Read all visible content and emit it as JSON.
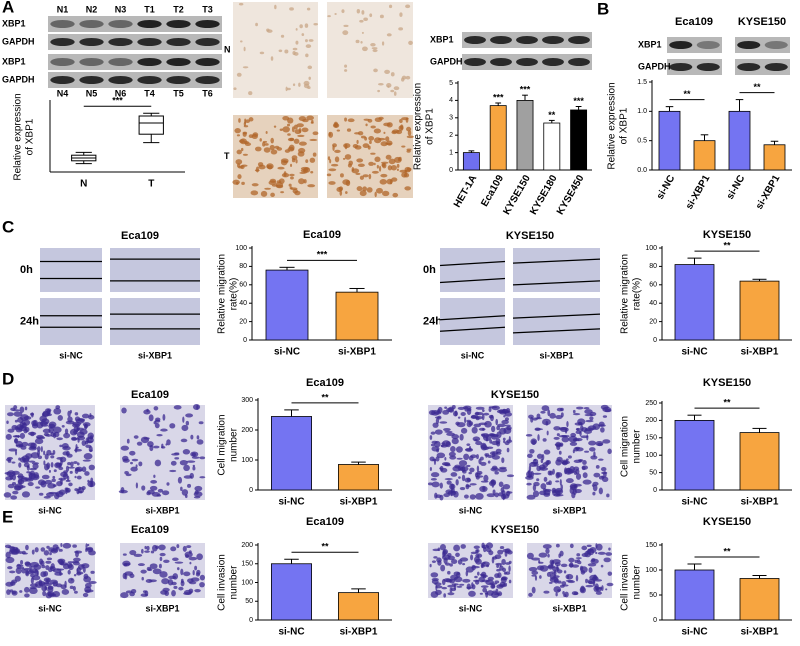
{
  "panel_labels": [
    "A",
    "B",
    "C",
    "D",
    "E"
  ],
  "blot_a": {
    "lanes_top": [
      "N1",
      "N2",
      "N3",
      "T1",
      "T2",
      "T3"
    ],
    "lanes_bottom": [
      "N4",
      "N5",
      "N6",
      "T4",
      "T5",
      "T6"
    ],
    "rows": [
      "XBP1",
      "GAPDH",
      "XBP1",
      "GAPDH"
    ]
  },
  "ihc_a": {
    "rows": [
      "N",
      "T"
    ]
  },
  "blot_a2": {
    "rows": [
      "XBP1",
      "GAPDH"
    ]
  },
  "blot_b": {
    "groups": [
      "Eca109",
      "KYSE150"
    ],
    "rows": [
      "XBP1",
      "GAPDH"
    ]
  },
  "scratch_images": [
    {
      "title": "Eca109",
      "rows": [
        "0h",
        "24h"
      ],
      "columns": [
        "si-NC",
        "si-XBP1"
      ]
    },
    {
      "title": "KYSE150",
      "rows": [
        "0h",
        "24h"
      ],
      "columns": [
        "si-NC",
        "si-XBP1"
      ]
    }
  ],
  "transwell_images": [
    {
      "title": "Eca109",
      "columns": [
        "si-NC",
        "si-XBP1"
      ]
    },
    {
      "title": "KYSE150",
      "columns": [
        "si-NC",
        "si-XBP1"
      ]
    },
    {
      "title": "Eca109",
      "columns": [
        "si-NC",
        "si-XBP1"
      ]
    },
    {
      "title": "KYSE150",
      "columns": [
        "si-NC",
        "si-XBP1"
      ]
    }
  ],
  "chart_data": [
    {
      "type": "box",
      "ylabel": [
        "Relative expression",
        "of XBP1"
      ],
      "categories": [
        "N",
        "T"
      ],
      "boxes": [
        {
          "min": 0.6,
          "q1": 0.8,
          "median": 1.0,
          "q3": 1.2,
          "max": 1.4
        },
        {
          "min": 2.1,
          "q1": 2.7,
          "median": 3.5,
          "q3": 4.0,
          "max": 4.2
        }
      ],
      "ylim": [
        0,
        5
      ],
      "pair_significance": [
        "***"
      ]
    },
    {
      "type": "bar",
      "ylabel": [
        "Relative expression",
        "of XBP1"
      ],
      "categories": [
        "HET-1A",
        "Eca109",
        "KYSE150",
        "KYSE180",
        "KYSE450"
      ],
      "values": [
        1,
        3.7,
        4,
        2.7,
        3.45
      ],
      "errors": [
        0.1,
        0.15,
        0.3,
        0.15,
        0.2
      ],
      "colors": [
        "#6f6ff0",
        "#f7a540",
        "#a0a0a0",
        "#ffffff",
        "#000000"
      ],
      "ylim": [
        0,
        5
      ],
      "yticks": [
        0,
        1,
        2,
        3,
        4,
        5
      ],
      "significance": [
        null,
        "***",
        "***",
        "**",
        "***"
      ]
    },
    {
      "type": "bar",
      "ylabel": [
        "Relative expression",
        "of XBP1"
      ],
      "categories": [
        "si-NC",
        "si-XBP1",
        "si-NC",
        "si-XBP1"
      ],
      "values": [
        1,
        0.5,
        1,
        0.43
      ],
      "errors": [
        0.08,
        0.1,
        0.2,
        0.06
      ],
      "colors": [
        "#7474f2",
        "#f7a540",
        "#7474f2",
        "#f7a540"
      ],
      "ylim": [
        0,
        1.5
      ],
      "yticks": [
        {
          "value": 0,
          "label": "0.0"
        },
        0.5,
        {
          "value": 1,
          "label": "1.0"
        },
        1.5
      ],
      "pair_significance": [
        "**",
        "**"
      ]
    },
    {
      "type": "bar",
      "title": "Eca109",
      "ylabel": [
        "Relative migration",
        "rate(%)"
      ],
      "categories": [
        "si-NC",
        "si-XBP1"
      ],
      "values": [
        76,
        52
      ],
      "errors": [
        3,
        4
      ],
      "colors": [
        "#7474f2",
        "#f7a540"
      ],
      "ylim": [
        0,
        100
      ],
      "yticks": [
        0,
        20,
        40,
        60,
        80,
        100
      ],
      "pair_significance": [
        "***"
      ]
    },
    {
      "type": "bar",
      "title": "KYSE150",
      "ylabel": [
        "Relative migration",
        "rate(%)"
      ],
      "categories": [
        "si-NC",
        "si-XBP1"
      ],
      "values": [
        82,
        64
      ],
      "errors": [
        7,
        2
      ],
      "colors": [
        "#7474f2",
        "#f7a540"
      ],
      "ylim": [
        0,
        100
      ],
      "yticks": [
        0,
        20,
        40,
        60,
        80,
        100
      ],
      "pair_significance": [
        "**"
      ]
    },
    {
      "type": "bar",
      "title": "Eca109",
      "ylabel": [
        "Cell migration",
        "number"
      ],
      "categories": [
        "si-NC",
        "si-XBP1"
      ],
      "values": [
        245,
        85
      ],
      "errors": [
        22,
        8
      ],
      "colors": [
        "#7474f2",
        "#f7a540"
      ],
      "ylim": [
        0,
        300
      ],
      "yticks": [
        0,
        100,
        200,
        300
      ],
      "pair_significance": [
        "**"
      ]
    },
    {
      "type": "bar",
      "title": "KYSE150",
      "ylabel": [
        "Cell migration",
        "number"
      ],
      "categories": [
        "si-NC",
        "si-XBP1"
      ],
      "values": [
        200,
        165
      ],
      "errors": [
        15,
        12
      ],
      "colors": [
        "#7474f2",
        "#f7a540"
      ],
      "ylim": [
        0,
        250
      ],
      "yticks": [
        0,
        50,
        100,
        150,
        200,
        250
      ],
      "pair_significance": [
        "**"
      ]
    },
    {
      "type": "bar",
      "title": "Eca109",
      "ylabel": [
        "Cell invasion",
        "number"
      ],
      "categories": [
        "si-NC",
        "si-XBP1"
      ],
      "values": [
        150,
        73
      ],
      "errors": [
        12,
        10
      ],
      "colors": [
        "#7474f2",
        "#f7a540"
      ],
      "ylim": [
        0,
        200
      ],
      "yticks": [
        0,
        50,
        100,
        150,
        200
      ],
      "pair_significance": [
        "**"
      ]
    },
    {
      "type": "bar",
      "title": "KYSE150",
      "ylabel": [
        "Cell invasion",
        "number"
      ],
      "categories": [
        "si-NC",
        "si-XBP1"
      ],
      "values": [
        100,
        83
      ],
      "errors": [
        12,
        6
      ],
      "colors": [
        "#7474f2",
        "#f7a540"
      ],
      "ylim": [
        0,
        150
      ],
      "yticks": [
        0,
        50,
        100,
        150
      ],
      "pair_significance": [
        "**"
      ]
    }
  ]
}
